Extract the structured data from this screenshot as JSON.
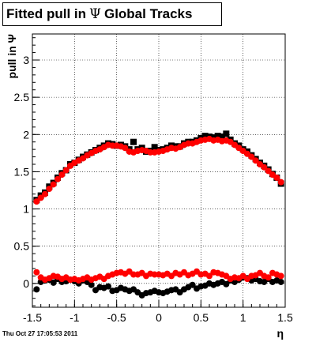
{
  "title": {
    "prefix": "Fitted pull in",
    "symbol": "Ψ",
    "suffix": "Global Tracks"
  },
  "timestamp": "Thu Oct 27 17:05:53 2011",
  "colors": {
    "black": "#000000",
    "red": "#ff0000",
    "grid": "#000000"
  },
  "chart_data": {
    "type": "scatter",
    "title": "Fitted pull in Ψ  Global Tracks",
    "xlabel": "η",
    "ylabel": "pull in Ψ",
    "xlim": [
      -1.5,
      1.5
    ],
    "ylim": [
      -0.32,
      3.35
    ],
    "grid": true,
    "xticks": [
      -1.5,
      -1,
      -0.5,
      0,
      0.5,
      1,
      1.5
    ],
    "xtick_labels": [
      "-1.5",
      "-1",
      "-0.5",
      "0",
      "0.5",
      "1",
      "1.5"
    ],
    "yticks": [
      0,
      0.5,
      1,
      1.5,
      2,
      2.5,
      3
    ],
    "ytick_labels": [
      "0",
      "0.5",
      "1",
      "1.5",
      "2",
      "2.5",
      "3"
    ],
    "series": [
      {
        "marker": "square",
        "color": "#000000",
        "x": [
          -1.45,
          -1.4,
          -1.35,
          -1.3,
          -1.25,
          -1.2,
          -1.15,
          -1.1,
          -1.05,
          -1.0,
          -0.95,
          -0.9,
          -0.85,
          -0.8,
          -0.75,
          -0.7,
          -0.65,
          -0.6,
          -0.55,
          -0.5,
          -0.45,
          -0.4,
          -0.35,
          -0.3,
          -0.25,
          -0.2,
          -0.15,
          -0.1,
          -0.05,
          0.0,
          0.05,
          0.1,
          0.15,
          0.2,
          0.25,
          0.3,
          0.35,
          0.4,
          0.45,
          0.5,
          0.55,
          0.6,
          0.65,
          0.7,
          0.75,
          0.8,
          0.85,
          0.9,
          0.95,
          1.0,
          1.05,
          1.1,
          1.15,
          1.2,
          1.25,
          1.3,
          1.35,
          1.4,
          1.45
        ],
        "y": [
          1.12,
          1.18,
          1.22,
          1.3,
          1.35,
          1.42,
          1.48,
          1.52,
          1.6,
          1.62,
          1.66,
          1.7,
          1.73,
          1.76,
          1.79,
          1.82,
          1.85,
          1.88,
          1.87,
          1.85,
          1.86,
          1.84,
          1.8,
          1.9,
          1.8,
          1.82,
          1.77,
          1.78,
          1.83,
          1.79,
          1.8,
          1.82,
          1.85,
          1.84,
          1.84,
          1.88,
          1.9,
          1.9,
          1.92,
          1.95,
          1.98,
          1.97,
          1.96,
          1.98,
          1.97,
          2.01,
          1.93,
          1.88,
          1.85,
          1.8,
          1.77,
          1.72,
          1.67,
          1.62,
          1.58,
          1.53,
          1.47,
          1.42,
          1.34
        ]
      },
      {
        "marker": "circle",
        "color": "#ff0000",
        "x": [
          -1.45,
          -1.4,
          -1.35,
          -1.3,
          -1.25,
          -1.2,
          -1.15,
          -1.1,
          -1.05,
          -1.0,
          -0.95,
          -0.9,
          -0.85,
          -0.8,
          -0.75,
          -0.7,
          -0.65,
          -0.6,
          -0.55,
          -0.5,
          -0.45,
          -0.4,
          -0.35,
          -0.3,
          -0.25,
          -0.2,
          -0.15,
          -0.1,
          -0.05,
          0.0,
          0.05,
          0.1,
          0.15,
          0.2,
          0.25,
          0.3,
          0.35,
          0.4,
          0.45,
          0.5,
          0.55,
          0.6,
          0.65,
          0.7,
          0.75,
          0.8,
          0.85,
          0.9,
          0.95,
          1.0,
          1.05,
          1.1,
          1.15,
          1.2,
          1.25,
          1.3,
          1.35,
          1.4,
          1.45
        ],
        "y": [
          1.1,
          1.15,
          1.2,
          1.27,
          1.33,
          1.4,
          1.46,
          1.52,
          1.58,
          1.62,
          1.65,
          1.68,
          1.72,
          1.75,
          1.78,
          1.8,
          1.83,
          1.86,
          1.85,
          1.85,
          1.84,
          1.82,
          1.77,
          1.76,
          1.78,
          1.79,
          1.78,
          1.76,
          1.76,
          1.77,
          1.78,
          1.8,
          1.82,
          1.81,
          1.83,
          1.86,
          1.88,
          1.88,
          1.9,
          1.92,
          1.93,
          1.94,
          1.92,
          1.93,
          1.91,
          1.92,
          1.9,
          1.86,
          1.82,
          1.78,
          1.74,
          1.7,
          1.65,
          1.6,
          1.56,
          1.51,
          1.46,
          1.42,
          1.36
        ]
      },
      {
        "marker": "circle",
        "color": "#000000",
        "x": [
          -1.45,
          -1.4,
          -1.35,
          -1.3,
          -1.25,
          -1.2,
          -1.15,
          -1.1,
          -1.05,
          -1.0,
          -0.95,
          -0.9,
          -0.85,
          -0.8,
          -0.75,
          -0.7,
          -0.65,
          -0.6,
          -0.55,
          -0.5,
          -0.45,
          -0.4,
          -0.35,
          -0.3,
          -0.25,
          -0.2,
          -0.15,
          -0.1,
          -0.05,
          0.0,
          0.05,
          0.1,
          0.15,
          0.2,
          0.25,
          0.3,
          0.35,
          0.4,
          0.45,
          0.5,
          0.55,
          0.6,
          0.65,
          0.7,
          0.75,
          0.8,
          0.85,
          0.9,
          0.95,
          1.0,
          1.05,
          1.1,
          1.15,
          1.2,
          1.25,
          1.3,
          1.35,
          1.4,
          1.45
        ],
        "y": [
          -0.08,
          0.02,
          0.04,
          0.05,
          0.01,
          0.06,
          0.02,
          0.03,
          0.05,
          0.03,
          0.0,
          0.04,
          0.02,
          -0.02,
          -0.09,
          -0.05,
          -0.06,
          -0.04,
          -0.1,
          -0.09,
          -0.06,
          -0.08,
          -0.1,
          -0.08,
          -0.12,
          -0.16,
          -0.13,
          -0.12,
          -0.1,
          -0.12,
          -0.13,
          -0.11,
          -0.09,
          -0.08,
          -0.12,
          -0.08,
          -0.05,
          -0.02,
          -0.07,
          -0.04,
          -0.03,
          0.0,
          -0.02,
          0.0,
          0.02,
          -0.01,
          0.04,
          0.02,
          0.05,
          0.08,
          0.07,
          0.04,
          0.06,
          0.03,
          0.02,
          0.06,
          0.02,
          0.04,
          0.02
        ]
      },
      {
        "marker": "circle",
        "color": "#ff0000",
        "x": [
          -1.45,
          -1.4,
          -1.35,
          -1.3,
          -1.25,
          -1.2,
          -1.15,
          -1.1,
          -1.05,
          -1.0,
          -0.95,
          -0.9,
          -0.85,
          -0.8,
          -0.75,
          -0.7,
          -0.65,
          -0.6,
          -0.55,
          -0.5,
          -0.45,
          -0.4,
          -0.35,
          -0.3,
          -0.25,
          -0.2,
          -0.15,
          -0.1,
          -0.05,
          0.0,
          0.05,
          0.1,
          0.15,
          0.2,
          0.25,
          0.3,
          0.35,
          0.4,
          0.45,
          0.5,
          0.55,
          0.6,
          0.65,
          0.7,
          0.75,
          0.8,
          0.85,
          0.9,
          0.95,
          1.0,
          1.05,
          1.1,
          1.15,
          1.2,
          1.25,
          1.3,
          1.35,
          1.4,
          1.45
        ],
        "y": [
          0.15,
          0.08,
          0.05,
          0.07,
          0.1,
          0.09,
          0.06,
          0.08,
          0.05,
          0.06,
          0.04,
          0.06,
          0.08,
          0.05,
          0.07,
          0.09,
          0.06,
          0.1,
          0.12,
          0.14,
          0.15,
          0.13,
          0.16,
          0.12,
          0.12,
          0.14,
          0.1,
          0.13,
          0.12,
          0.12,
          0.11,
          0.13,
          0.1,
          0.14,
          0.12,
          0.15,
          0.11,
          0.13,
          0.16,
          0.12,
          0.13,
          0.1,
          0.15,
          0.14,
          0.12,
          0.1,
          0.06,
          0.08,
          0.07,
          0.1,
          0.06,
          0.1,
          0.11,
          0.14,
          0.1,
          0.08,
          0.14,
          0.12,
          0.1
        ]
      }
    ]
  }
}
